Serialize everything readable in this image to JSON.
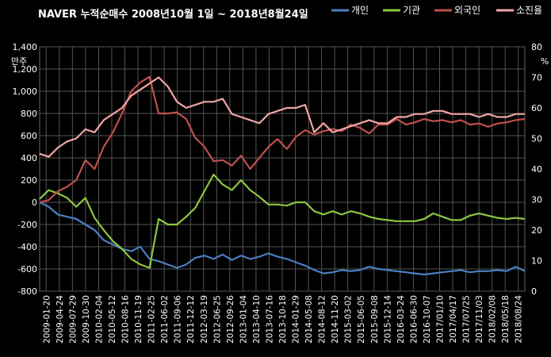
{
  "chart_data": {
    "type": "line",
    "title": "NAVER 누적순매수   2008년10월 1일 ~ 2018년8월24일",
    "ylabel_left": "만주",
    "ylabel_right": "%",
    "ylim_left": [
      -800,
      1400
    ],
    "ylim_right": [
      0,
      80
    ],
    "yticks_left": [
      "1,400",
      "1,200",
      "1,000",
      "800",
      "600",
      "400",
      "200",
      "0",
      "-200",
      "-400",
      "-600",
      "-800"
    ],
    "yticks_right": [
      "80",
      "70",
      "60",
      "50",
      "40",
      "30",
      "20",
      "10",
      "0"
    ],
    "x_ticks": [
      "2009-01-20",
      "2009-04-24",
      "2009-07-29",
      "2009-10-30",
      "2010-02-04",
      "2010-05-12",
      "2010-08-16",
      "2010-11-19",
      "2011-02-25",
      "2011-06-02",
      "2011-09-06",
      "2011-12-12",
      "2012-03-19",
      "2012-06-25",
      "2012-09-26",
      "2013-01-04",
      "2013-04-10",
      "2013-07-16",
      "2013-10-18",
      "2014-01-29",
      "2014-05-08",
      "2014-08-12",
      "2014-11-20",
      "2015-03-02",
      "2015-06-05",
      "2015-09-08",
      "2015-12-14",
      "2016-03-24",
      "2016-06-30",
      "2016-10-07",
      "2017/01/10",
      "2017/04/17",
      "2017/07/25",
      "2017/11/03",
      "2018/02/08",
      "2018/05/18",
      "2018/08/24"
    ],
    "grid": true,
    "legend": "top-right",
    "series": [
      {
        "name": "개인",
        "axis": "left",
        "color": "#4a7fc1",
        "values": [
          0,
          -40,
          -110,
          -130,
          -150,
          -200,
          -250,
          -340,
          -380,
          -420,
          -440,
          -400,
          -510,
          -530,
          -560,
          -590,
          -560,
          -500,
          -480,
          -510,
          -470,
          -520,
          -480,
          -510,
          -490,
          -460,
          -490,
          -510,
          -540,
          -570,
          -610,
          -640,
          -630,
          -610,
          -620,
          -610,
          -580,
          -600,
          -610,
          -620,
          -630,
          -640,
          -650,
          -640,
          -630,
          -620,
          -610,
          -630,
          -620,
          -620,
          -610,
          -620,
          -580,
          -620
        ]
      },
      {
        "name": "기관",
        "axis": "left",
        "color": "#8dc63f",
        "values": [
          30,
          110,
          80,
          40,
          -40,
          40,
          -140,
          -250,
          -350,
          -420,
          -510,
          -560,
          -590,
          -150,
          -200,
          -200,
          -130,
          -50,
          100,
          250,
          160,
          110,
          200,
          110,
          50,
          -20,
          -20,
          -30,
          0,
          0,
          -80,
          -110,
          -80,
          -110,
          -80,
          -100,
          -130,
          -150,
          -160,
          -170,
          -170,
          -170,
          -150,
          -100,
          -130,
          -160,
          -160,
          -120,
          -100,
          -120,
          -140,
          -150,
          -140,
          -150
        ]
      },
      {
        "name": "외국인",
        "axis": "left",
        "color": "#c0504d",
        "values": [
          0,
          20,
          100,
          140,
          200,
          380,
          300,
          500,
          630,
          800,
          1000,
          1080,
          1130,
          800,
          800,
          810,
          750,
          580,
          500,
          370,
          380,
          330,
          420,
          300,
          400,
          500,
          570,
          480,
          590,
          650,
          610,
          640,
          660,
          640,
          700,
          670,
          620,
          700,
          700,
          750,
          700,
          720,
          750,
          730,
          740,
          720,
          740,
          700,
          710,
          680,
          710,
          720,
          740,
          750
        ]
      },
      {
        "name": "소진율",
        "axis": "right",
        "color": "#f2a5a5",
        "values": [
          45,
          44,
          47,
          49,
          50,
          53,
          52,
          56,
          58,
          60,
          64,
          66,
          68,
          70,
          67,
          62,
          60,
          61,
          62,
          62,
          63,
          58,
          57,
          56,
          55,
          58,
          59,
          60,
          60,
          61,
          52,
          55,
          52,
          53,
          54,
          55,
          56,
          55,
          55,
          57,
          57,
          58,
          58,
          59,
          59,
          58,
          58,
          58,
          57,
          58,
          57,
          57,
          58,
          58
        ]
      }
    ]
  }
}
